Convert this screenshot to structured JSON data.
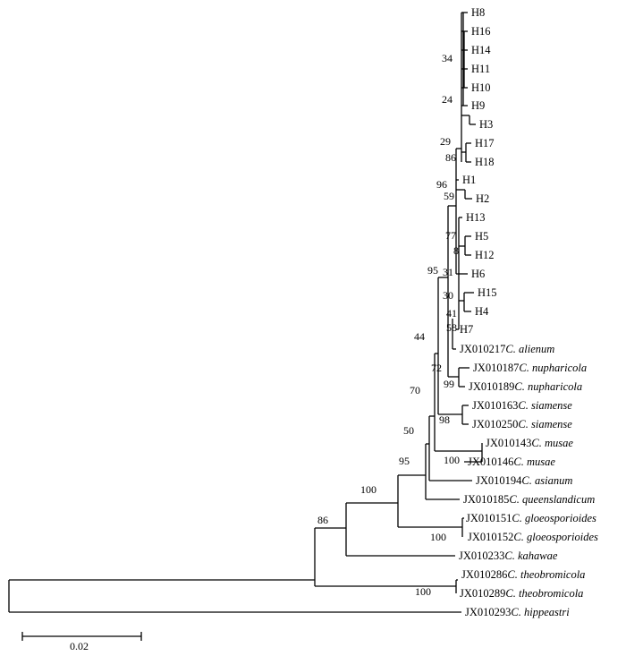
{
  "tree": {
    "leaves": [
      {
        "id": "H8",
        "acc": "H8",
        "sp": ""
      },
      {
        "id": "H16",
        "acc": "H16",
        "sp": ""
      },
      {
        "id": "H14",
        "acc": "H14",
        "sp": ""
      },
      {
        "id": "H11",
        "acc": "H11",
        "sp": ""
      },
      {
        "id": "H10",
        "acc": "H10",
        "sp": ""
      },
      {
        "id": "H9",
        "acc": "H9",
        "sp": ""
      },
      {
        "id": "H3",
        "acc": "H3",
        "sp": ""
      },
      {
        "id": "H17",
        "acc": "H17",
        "sp": ""
      },
      {
        "id": "H18",
        "acc": "H18",
        "sp": ""
      },
      {
        "id": "H1",
        "acc": "H1",
        "sp": ""
      },
      {
        "id": "H2",
        "acc": "H2",
        "sp": ""
      },
      {
        "id": "H13",
        "acc": "H13",
        "sp": ""
      },
      {
        "id": "H5",
        "acc": "H5",
        "sp": ""
      },
      {
        "id": "H12",
        "acc": "H12",
        "sp": ""
      },
      {
        "id": "H6",
        "acc": "H6",
        "sp": ""
      },
      {
        "id": "H15",
        "acc": "H15",
        "sp": ""
      },
      {
        "id": "H4",
        "acc": "H4",
        "sp": ""
      },
      {
        "id": "H7",
        "acc": "H7",
        "sp": ""
      },
      {
        "id": "alienum",
        "acc": "JX010217",
        "sp": "C. alienum"
      },
      {
        "id": "nuph187",
        "acc": "JX010187",
        "sp": "C. nupharicola"
      },
      {
        "id": "nuph189",
        "acc": "JX010189",
        "sp": "C. nupharicola"
      },
      {
        "id": "siam163",
        "acc": "JX010163",
        "sp": "C. siamense"
      },
      {
        "id": "siam250",
        "acc": "JX010250",
        "sp": "C. siamense"
      },
      {
        "id": "musae143",
        "acc": "JX010143",
        "sp": "C. musae"
      },
      {
        "id": "musae146",
        "acc": "JX010146",
        "sp": "C. musae"
      },
      {
        "id": "asianum",
        "acc": "JX010194",
        "sp": "C. asianum"
      },
      {
        "id": "queens",
        "acc": "JX010185",
        "sp": "C. queenslandicum"
      },
      {
        "id": "gloeo151",
        "acc": "JX010151",
        "sp": "C. gloeosporioides"
      },
      {
        "id": "gloeo152",
        "acc": "JX010152",
        "sp": "C. gloeosporioides"
      },
      {
        "id": "kahawae",
        "acc": "JX010233",
        "sp": "C. kahawae"
      },
      {
        "id": "theo286",
        "acc": "JX010286",
        "sp": "C. theobromicola"
      },
      {
        "id": "theo289",
        "acc": "JX010289",
        "sp": "C. theobromicola"
      },
      {
        "id": "hippe",
        "acc": "JX010293",
        "sp": "C. hippeastri"
      }
    ],
    "bootstrap_values": [
      {
        "id": "b34",
        "value": "34"
      },
      {
        "id": "b24",
        "value": "24"
      },
      {
        "id": "b29",
        "value": "29"
      },
      {
        "id": "b86a",
        "value": "86"
      },
      {
        "id": "b96",
        "value": "96"
      },
      {
        "id": "b59",
        "value": "59"
      },
      {
        "id": "b77",
        "value": "77"
      },
      {
        "id": "b8",
        "value": "8"
      },
      {
        "id": "b31",
        "value": "31"
      },
      {
        "id": "b30",
        "value": "30"
      },
      {
        "id": "b41",
        "value": "41"
      },
      {
        "id": "b58",
        "value": "58"
      },
      {
        "id": "b95a",
        "value": "95"
      },
      {
        "id": "b72",
        "value": "72"
      },
      {
        "id": "b44",
        "value": "44"
      },
      {
        "id": "b99",
        "value": "99"
      },
      {
        "id": "b70",
        "value": "70"
      },
      {
        "id": "b98",
        "value": "98"
      },
      {
        "id": "b50",
        "value": "50"
      },
      {
        "id": "b100a",
        "value": "100"
      },
      {
        "id": "b95b",
        "value": "95"
      },
      {
        "id": "b100b",
        "value": "100"
      },
      {
        "id": "b100c",
        "value": "100"
      },
      {
        "id": "b86b",
        "value": "86"
      },
      {
        "id": "b100d",
        "value": "100"
      }
    ],
    "scale_bar": {
      "label": "0.02"
    }
  }
}
